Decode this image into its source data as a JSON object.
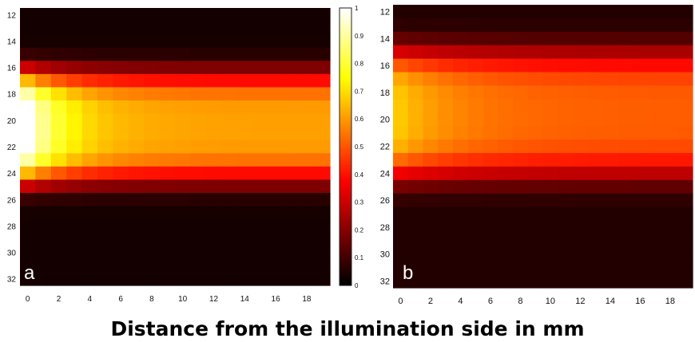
{
  "caption": "Distance from the illumination side in mm",
  "chart_data": [
    {
      "type": "heatmap",
      "panel_label": "a",
      "colormap": "hot",
      "x_ticks": [
        0,
        2,
        4,
        6,
        8,
        10,
        12,
        14,
        16,
        18
      ],
      "y_ticks": [
        12,
        14,
        16,
        18,
        20,
        22,
        24,
        26,
        28,
        30,
        32
      ],
      "xlim": [
        0,
        19
      ],
      "ylim": [
        12,
        32
      ],
      "grid": {
        "columns": 20,
        "rows": 21,
        "x_step": 1,
        "y_step": 1,
        "x_start": 0,
        "y_start": 12
      },
      "colorbar": {
        "ticks": [
          0,
          0.1,
          0.2,
          0.3,
          0.4,
          0.5,
          0.6,
          0.7,
          0.8,
          0.9,
          1
        ],
        "range": [
          0,
          1
        ]
      },
      "approx_model": "value(x,y) = exp(-((y-20.5)/4.2)^4) * (0.58 + 0.42*exp(-x/2.5)) + 0.03, values 0-1"
    },
    {
      "type": "heatmap",
      "panel_label": "b",
      "colormap": "hot",
      "x_ticks": [
        0,
        2,
        4,
        6,
        8,
        10,
        12,
        14,
        16,
        18
      ],
      "y_ticks": [
        12,
        14,
        16,
        18,
        20,
        22,
        24,
        26,
        28,
        30,
        32
      ],
      "xlim": [
        0,
        19
      ],
      "ylim": [
        12,
        32
      ],
      "grid": {
        "columns": 20,
        "rows": 21,
        "x_step": 1,
        "y_step": 1,
        "x_start": 0,
        "y_start": 12
      },
      "approx_model": "value(x,y) = exp(-((y-19.6)/4.8)^4) * (0.46 + 0.16*exp(-x/4)) + 0.05, values 0-1"
    }
  ]
}
